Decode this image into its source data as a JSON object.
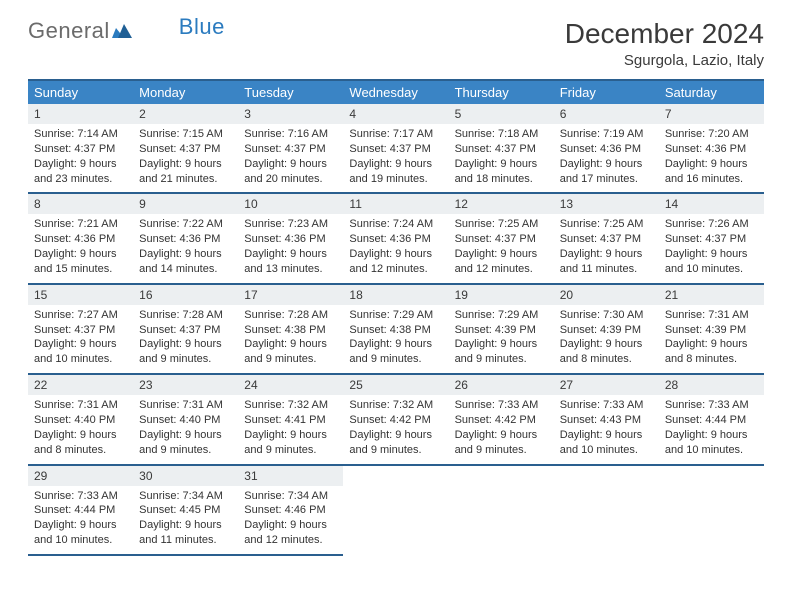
{
  "logo": {
    "part1": "General",
    "part2": "Blue"
  },
  "title": "December 2024",
  "location": "Sgurgola, Lazio, Italy",
  "colors": {
    "header_bg": "#3a84c5",
    "header_rule": "#2a5f8f",
    "daynum_bg": "#eceff1",
    "text": "#333333",
    "logo_grey": "#6b6b6b",
    "logo_blue": "#2b7bbf"
  },
  "weekdays": [
    "Sunday",
    "Monday",
    "Tuesday",
    "Wednesday",
    "Thursday",
    "Friday",
    "Saturday"
  ],
  "weeks": [
    [
      {
        "n": "1",
        "sunrise": "Sunrise: 7:14 AM",
        "sunset": "Sunset: 4:37 PM",
        "day1": "Daylight: 9 hours",
        "day2": "and 23 minutes."
      },
      {
        "n": "2",
        "sunrise": "Sunrise: 7:15 AM",
        "sunset": "Sunset: 4:37 PM",
        "day1": "Daylight: 9 hours",
        "day2": "and 21 minutes."
      },
      {
        "n": "3",
        "sunrise": "Sunrise: 7:16 AM",
        "sunset": "Sunset: 4:37 PM",
        "day1": "Daylight: 9 hours",
        "day2": "and 20 minutes."
      },
      {
        "n": "4",
        "sunrise": "Sunrise: 7:17 AM",
        "sunset": "Sunset: 4:37 PM",
        "day1": "Daylight: 9 hours",
        "day2": "and 19 minutes."
      },
      {
        "n": "5",
        "sunrise": "Sunrise: 7:18 AM",
        "sunset": "Sunset: 4:37 PM",
        "day1": "Daylight: 9 hours",
        "day2": "and 18 minutes."
      },
      {
        "n": "6",
        "sunrise": "Sunrise: 7:19 AM",
        "sunset": "Sunset: 4:36 PM",
        "day1": "Daylight: 9 hours",
        "day2": "and 17 minutes."
      },
      {
        "n": "7",
        "sunrise": "Sunrise: 7:20 AM",
        "sunset": "Sunset: 4:36 PM",
        "day1": "Daylight: 9 hours",
        "day2": "and 16 minutes."
      }
    ],
    [
      {
        "n": "8",
        "sunrise": "Sunrise: 7:21 AM",
        "sunset": "Sunset: 4:36 PM",
        "day1": "Daylight: 9 hours",
        "day2": "and 15 minutes."
      },
      {
        "n": "9",
        "sunrise": "Sunrise: 7:22 AM",
        "sunset": "Sunset: 4:36 PM",
        "day1": "Daylight: 9 hours",
        "day2": "and 14 minutes."
      },
      {
        "n": "10",
        "sunrise": "Sunrise: 7:23 AM",
        "sunset": "Sunset: 4:36 PM",
        "day1": "Daylight: 9 hours",
        "day2": "and 13 minutes."
      },
      {
        "n": "11",
        "sunrise": "Sunrise: 7:24 AM",
        "sunset": "Sunset: 4:36 PM",
        "day1": "Daylight: 9 hours",
        "day2": "and 12 minutes."
      },
      {
        "n": "12",
        "sunrise": "Sunrise: 7:25 AM",
        "sunset": "Sunset: 4:37 PM",
        "day1": "Daylight: 9 hours",
        "day2": "and 12 minutes."
      },
      {
        "n": "13",
        "sunrise": "Sunrise: 7:25 AM",
        "sunset": "Sunset: 4:37 PM",
        "day1": "Daylight: 9 hours",
        "day2": "and 11 minutes."
      },
      {
        "n": "14",
        "sunrise": "Sunrise: 7:26 AM",
        "sunset": "Sunset: 4:37 PM",
        "day1": "Daylight: 9 hours",
        "day2": "and 10 minutes."
      }
    ],
    [
      {
        "n": "15",
        "sunrise": "Sunrise: 7:27 AM",
        "sunset": "Sunset: 4:37 PM",
        "day1": "Daylight: 9 hours",
        "day2": "and 10 minutes."
      },
      {
        "n": "16",
        "sunrise": "Sunrise: 7:28 AM",
        "sunset": "Sunset: 4:37 PM",
        "day1": "Daylight: 9 hours",
        "day2": "and 9 minutes."
      },
      {
        "n": "17",
        "sunrise": "Sunrise: 7:28 AM",
        "sunset": "Sunset: 4:38 PM",
        "day1": "Daylight: 9 hours",
        "day2": "and 9 minutes."
      },
      {
        "n": "18",
        "sunrise": "Sunrise: 7:29 AM",
        "sunset": "Sunset: 4:38 PM",
        "day1": "Daylight: 9 hours",
        "day2": "and 9 minutes."
      },
      {
        "n": "19",
        "sunrise": "Sunrise: 7:29 AM",
        "sunset": "Sunset: 4:39 PM",
        "day1": "Daylight: 9 hours",
        "day2": "and 9 minutes."
      },
      {
        "n": "20",
        "sunrise": "Sunrise: 7:30 AM",
        "sunset": "Sunset: 4:39 PM",
        "day1": "Daylight: 9 hours",
        "day2": "and 8 minutes."
      },
      {
        "n": "21",
        "sunrise": "Sunrise: 7:31 AM",
        "sunset": "Sunset: 4:39 PM",
        "day1": "Daylight: 9 hours",
        "day2": "and 8 minutes."
      }
    ],
    [
      {
        "n": "22",
        "sunrise": "Sunrise: 7:31 AM",
        "sunset": "Sunset: 4:40 PM",
        "day1": "Daylight: 9 hours",
        "day2": "and 8 minutes."
      },
      {
        "n": "23",
        "sunrise": "Sunrise: 7:31 AM",
        "sunset": "Sunset: 4:40 PM",
        "day1": "Daylight: 9 hours",
        "day2": "and 9 minutes."
      },
      {
        "n": "24",
        "sunrise": "Sunrise: 7:32 AM",
        "sunset": "Sunset: 4:41 PM",
        "day1": "Daylight: 9 hours",
        "day2": "and 9 minutes."
      },
      {
        "n": "25",
        "sunrise": "Sunrise: 7:32 AM",
        "sunset": "Sunset: 4:42 PM",
        "day1": "Daylight: 9 hours",
        "day2": "and 9 minutes."
      },
      {
        "n": "26",
        "sunrise": "Sunrise: 7:33 AM",
        "sunset": "Sunset: 4:42 PM",
        "day1": "Daylight: 9 hours",
        "day2": "and 9 minutes."
      },
      {
        "n": "27",
        "sunrise": "Sunrise: 7:33 AM",
        "sunset": "Sunset: 4:43 PM",
        "day1": "Daylight: 9 hours",
        "day2": "and 10 minutes."
      },
      {
        "n": "28",
        "sunrise": "Sunrise: 7:33 AM",
        "sunset": "Sunset: 4:44 PM",
        "day1": "Daylight: 9 hours",
        "day2": "and 10 minutes."
      }
    ],
    [
      {
        "n": "29",
        "sunrise": "Sunrise: 7:33 AM",
        "sunset": "Sunset: 4:44 PM",
        "day1": "Daylight: 9 hours",
        "day2": "and 10 minutes."
      },
      {
        "n": "30",
        "sunrise": "Sunrise: 7:34 AM",
        "sunset": "Sunset: 4:45 PM",
        "day1": "Daylight: 9 hours",
        "day2": "and 11 minutes."
      },
      {
        "n": "31",
        "sunrise": "Sunrise: 7:34 AM",
        "sunset": "Sunset: 4:46 PM",
        "day1": "Daylight: 9 hours",
        "day2": "and 12 minutes."
      },
      null,
      null,
      null,
      null
    ]
  ]
}
